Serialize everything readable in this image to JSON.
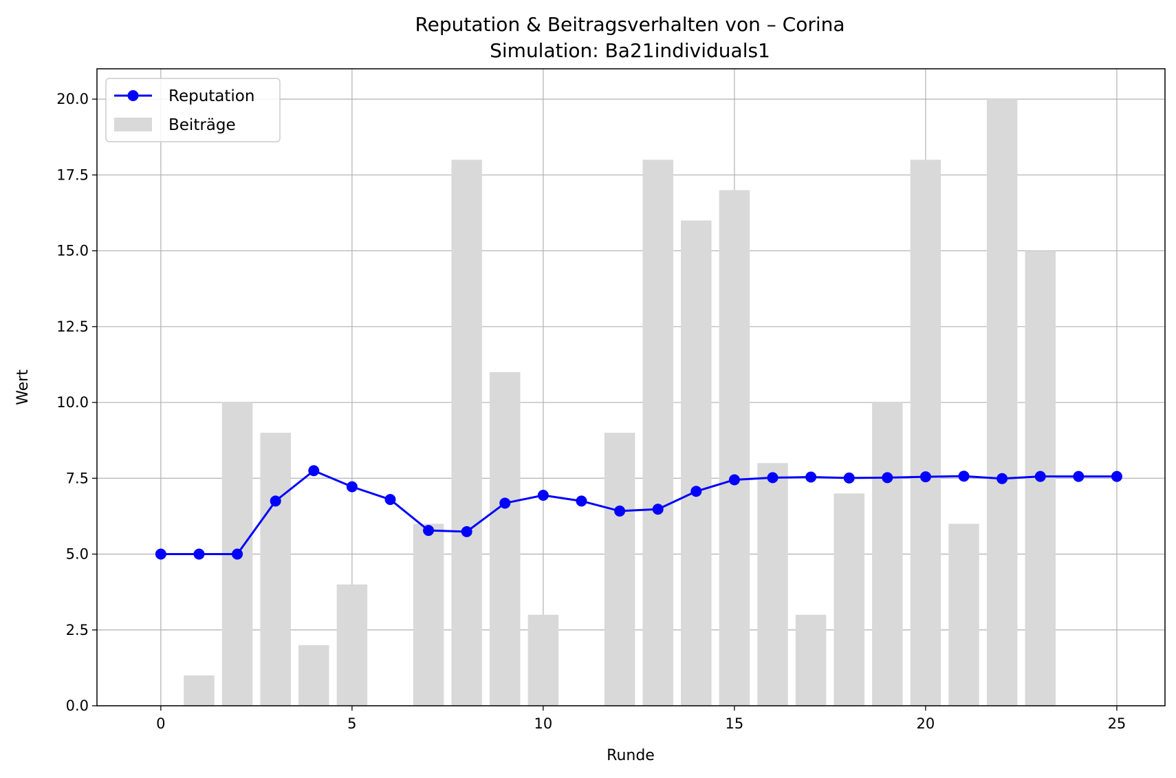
{
  "chart_data": {
    "type": "bar",
    "title": "Reputation & Beitragsverhalten von – Corina",
    "subtitle": "Simulation: Ba21individuals1",
    "xlabel": "Runde",
    "ylabel": "Wert",
    "xlim": [
      -1.67,
      26.26
    ],
    "ylim": [
      0,
      21
    ],
    "xticks": [
      "0",
      "5",
      "10",
      "15",
      "20",
      "25"
    ],
    "yticks": [
      "0.0",
      "2.5",
      "5.0",
      "7.5",
      "10.0",
      "12.5",
      "15.0",
      "17.5",
      "20.0"
    ],
    "grid": true,
    "legend_position": "top-left",
    "series": [
      {
        "name": "Reputation",
        "type": "line",
        "color": "#0000ff",
        "marker": "circle",
        "x": [
          0,
          1,
          2,
          3,
          4,
          5,
          6,
          7,
          8,
          9,
          10,
          11,
          12,
          13,
          14,
          15,
          16,
          17,
          18,
          19,
          20,
          21,
          22,
          23,
          24,
          25
        ],
        "values": [
          5.0,
          5.0,
          5.0,
          6.75,
          7.75,
          7.22,
          6.8,
          5.78,
          5.74,
          6.68,
          6.94,
          6.75,
          6.42,
          6.48,
          7.07,
          7.45,
          7.52,
          7.54,
          7.51,
          7.52,
          7.55,
          7.57,
          7.49,
          7.56,
          7.56,
          7.56
        ]
      },
      {
        "name": "Beiträge",
        "type": "bar",
        "color": "#d9d9d9",
        "x": [
          0,
          1,
          2,
          3,
          4,
          5,
          6,
          7,
          8,
          9,
          10,
          11,
          12,
          13,
          14,
          15,
          16,
          17,
          18,
          19,
          20,
          21,
          22,
          23,
          24,
          25
        ],
        "values": [
          0,
          1,
          10,
          9,
          2,
          4,
          0,
          6,
          18,
          11,
          3,
          0,
          9,
          18,
          16,
          17,
          8,
          3,
          7,
          10,
          18,
          6,
          20,
          15,
          0,
          0
        ]
      }
    ]
  }
}
